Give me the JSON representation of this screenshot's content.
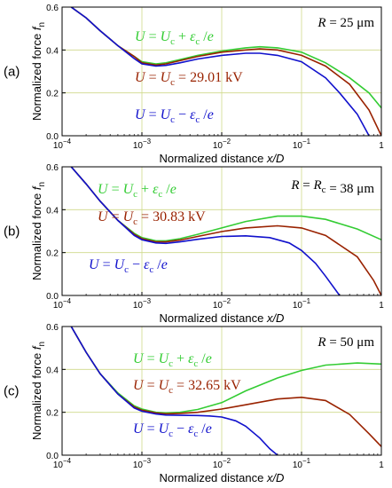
{
  "chart_data": {
    "type": "line",
    "shared": {
      "xlabel": "Normalized distance x/D",
      "ylabel": "Normalized force f_n",
      "xscale": "log",
      "xlim": [
        0.0001,
        1
      ],
      "ylim": [
        0,
        0.6
      ],
      "xtick_labels": [
        "10^-4",
        "10^-3",
        "10^-2",
        "10^-1",
        "1"
      ],
      "ytick_labels": [
        "0.0",
        "0.2",
        "0.4",
        "0.6"
      ],
      "grid": true
    },
    "series_style": {
      "plus": "#33cc33",
      "critical": "#992200",
      "minus": "#1111cc"
    },
    "panels": [
      {
        "label": "(a)",
        "radius_text": "R = 25 μm",
        "annotations": {
          "plus": "U = Uc + εc /e",
          "critical": "U = Uc = 29.01 kV",
          "minus": "U = Uc − εc /e"
        },
        "series": [
          {
            "key": "plus",
            "x": [
              0.00013,
              0.0002,
              0.0003,
              0.0005,
              0.0008,
              0.001,
              0.0015,
              0.002,
              0.003,
              0.005,
              0.01,
              0.02,
              0.03,
              0.05,
              0.1,
              0.2,
              0.4,
              0.7,
              1.0
            ],
            "y": [
              0.6,
              0.55,
              0.49,
              0.42,
              0.37,
              0.345,
              0.335,
              0.34,
              0.355,
              0.375,
              0.395,
              0.41,
              0.415,
              0.41,
              0.39,
              0.34,
              0.27,
              0.2,
              0.13
            ]
          },
          {
            "key": "critical",
            "x": [
              0.00013,
              0.0002,
              0.0003,
              0.0005,
              0.0008,
              0.001,
              0.0015,
              0.002,
              0.003,
              0.005,
              0.01,
              0.02,
              0.03,
              0.05,
              0.1,
              0.2,
              0.4,
              0.7,
              1.0
            ],
            "y": [
              0.6,
              0.55,
              0.49,
              0.42,
              0.37,
              0.34,
              0.33,
              0.335,
              0.35,
              0.37,
              0.39,
              0.4,
              0.405,
              0.4,
              0.375,
              0.325,
              0.24,
              0.12,
              0.0
            ]
          },
          {
            "key": "minus",
            "x": [
              0.00013,
              0.0002,
              0.0003,
              0.0005,
              0.0008,
              0.001,
              0.0015,
              0.002,
              0.003,
              0.005,
              0.01,
              0.02,
              0.03,
              0.05,
              0.1,
              0.2,
              0.3,
              0.5,
              0.7
            ],
            "y": [
              0.6,
              0.55,
              0.49,
              0.42,
              0.36,
              0.335,
              0.325,
              0.328,
              0.34,
              0.358,
              0.375,
              0.385,
              0.385,
              0.375,
              0.345,
              0.27,
              0.2,
              0.1,
              0.0
            ]
          }
        ]
      },
      {
        "label": "(b)",
        "radius_text": "R = Rc = 38 μm",
        "annotations": {
          "plus": "U = Uc + εc /e",
          "critical": "U = Uc = 30.83 kV",
          "minus": "U = Uc − εc /e"
        },
        "series": [
          {
            "key": "plus",
            "x": [
              0.00013,
              0.0002,
              0.0003,
              0.0005,
              0.0008,
              0.001,
              0.0015,
              0.002,
              0.003,
              0.005,
              0.01,
              0.02,
              0.05,
              0.1,
              0.2,
              0.5,
              1.0
            ],
            "y": [
              0.6,
              0.52,
              0.44,
              0.35,
              0.29,
              0.27,
              0.255,
              0.255,
              0.265,
              0.285,
              0.315,
              0.345,
              0.37,
              0.37,
              0.355,
              0.31,
              0.26
            ]
          },
          {
            "key": "critical",
            "x": [
              0.00013,
              0.0002,
              0.0003,
              0.0005,
              0.0008,
              0.001,
              0.0015,
              0.002,
              0.003,
              0.005,
              0.01,
              0.02,
              0.05,
              0.1,
              0.2,
              0.5,
              0.8,
              1.0
            ],
            "y": [
              0.6,
              0.52,
              0.44,
              0.35,
              0.285,
              0.265,
              0.25,
              0.25,
              0.258,
              0.275,
              0.298,
              0.315,
              0.325,
              0.315,
              0.28,
              0.18,
              0.07,
              0.0
            ]
          },
          {
            "key": "minus",
            "x": [
              0.00013,
              0.0002,
              0.0003,
              0.0005,
              0.0008,
              0.001,
              0.0015,
              0.002,
              0.003,
              0.005,
              0.01,
              0.02,
              0.04,
              0.07,
              0.1,
              0.15,
              0.2,
              0.3
            ],
            "y": [
              0.6,
              0.52,
              0.44,
              0.35,
              0.28,
              0.26,
              0.245,
              0.243,
              0.25,
              0.262,
              0.275,
              0.278,
              0.27,
              0.245,
              0.21,
              0.15,
              0.09,
              0.0
            ]
          }
        ]
      },
      {
        "label": "(c)",
        "radius_text": "R = 50 μm",
        "annotations": {
          "plus": "U = Uc + εc /e",
          "critical": "U = Uc = 32.65 kV",
          "minus": "U = Uc − εc /e"
        },
        "series": [
          {
            "key": "plus",
            "x": [
              0.00013,
              0.0002,
              0.0003,
              0.0005,
              0.0008,
              0.001,
              0.0015,
              0.002,
              0.003,
              0.005,
              0.01,
              0.02,
              0.05,
              0.1,
              0.2,
              0.5,
              1.0
            ],
            "y": [
              0.6,
              0.48,
              0.38,
              0.29,
              0.23,
              0.215,
              0.2,
              0.197,
              0.2,
              0.213,
              0.245,
              0.3,
              0.36,
              0.395,
              0.42,
              0.43,
              0.425
            ]
          },
          {
            "key": "critical",
            "x": [
              0.00013,
              0.0002,
              0.0003,
              0.0005,
              0.0008,
              0.001,
              0.0015,
              0.002,
              0.003,
              0.005,
              0.01,
              0.02,
              0.05,
              0.1,
              0.2,
              0.4,
              0.7,
              1.0
            ],
            "y": [
              0.6,
              0.48,
              0.38,
              0.285,
              0.225,
              0.21,
              0.197,
              0.193,
              0.195,
              0.2,
              0.215,
              0.235,
              0.262,
              0.27,
              0.255,
              0.19,
              0.1,
              0.04
            ]
          },
          {
            "key": "minus",
            "x": [
              0.00013,
              0.0002,
              0.0003,
              0.0005,
              0.0008,
              0.001,
              0.0015,
              0.002,
              0.003,
              0.005,
              0.007,
              0.01,
              0.015,
              0.02,
              0.03,
              0.04,
              0.05
            ],
            "y": [
              0.6,
              0.48,
              0.38,
              0.285,
              0.22,
              0.205,
              0.192,
              0.187,
              0.186,
              0.185,
              0.183,
              0.178,
              0.16,
              0.135,
              0.08,
              0.03,
              0.0
            ]
          }
        ]
      }
    ]
  }
}
